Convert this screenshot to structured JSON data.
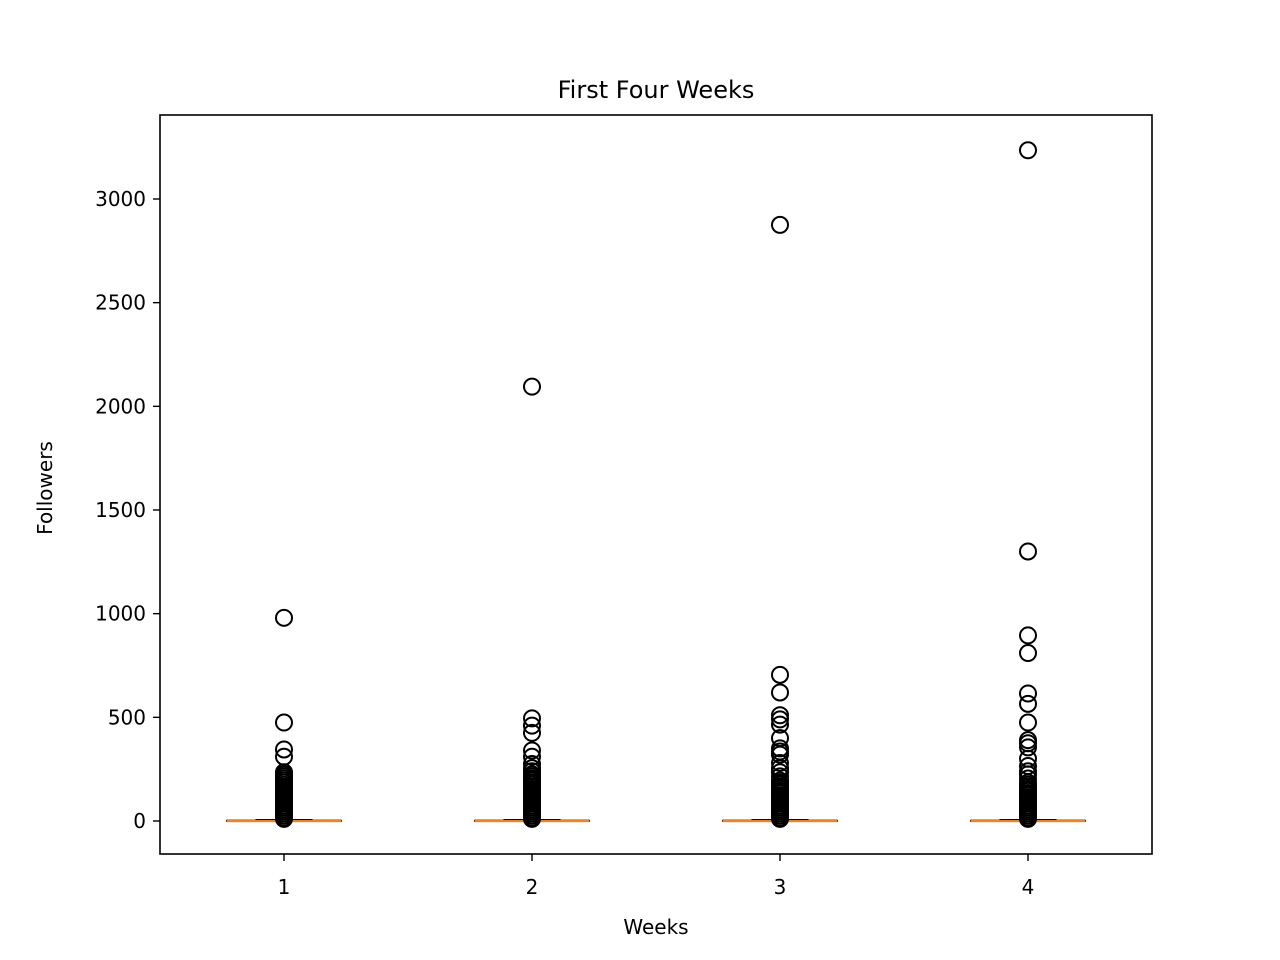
{
  "chart_data": {
    "type": "box",
    "title": "First Four Weeks",
    "xlabel": "Weeks",
    "ylabel": "Followers",
    "ylim": [
      -155,
      3400
    ],
    "yticks": [
      0,
      500,
      1000,
      1500,
      2000,
      2500,
      3000
    ],
    "grid": false,
    "colors": {
      "median": "#ff7f0e",
      "box": "#000000",
      "outlier": "#000000"
    },
    "categories": [
      "1",
      "2",
      "3",
      "4"
    ],
    "boxes": [
      {
        "category": "1",
        "min": 0,
        "q1": 0,
        "median": 0,
        "q3": 3,
        "max": 6,
        "outliers": [
          980,
          475,
          345,
          310,
          235,
          225,
          215,
          205,
          195,
          185,
          175,
          165,
          155,
          145,
          135,
          125,
          115,
          105,
          95,
          85,
          75,
          65,
          55,
          45,
          35,
          25,
          15,
          10
        ]
      },
      {
        "category": "2",
        "min": 0,
        "q1": 0,
        "median": 0,
        "q3": 3,
        "max": 6,
        "outliers": [
          2095,
          495,
          460,
          425,
          340,
          310,
          275,
          255,
          240,
          225,
          215,
          205,
          195,
          185,
          175,
          165,
          155,
          145,
          135,
          125,
          115,
          105,
          95,
          85,
          75,
          65,
          55,
          45,
          35,
          25,
          15,
          10
        ]
      },
      {
        "category": "3",
        "min": 0,
        "q1": 0,
        "median": 0,
        "q3": 3,
        "max": 6,
        "outliers": [
          2875,
          705,
          620,
          510,
          490,
          465,
          400,
          350,
          335,
          320,
          280,
          255,
          235,
          215,
          195,
          185,
          175,
          165,
          155,
          145,
          135,
          125,
          115,
          105,
          95,
          85,
          75,
          65,
          55,
          45,
          35,
          25,
          15,
          10
        ]
      },
      {
        "category": "4",
        "min": 0,
        "q1": 0,
        "median": 0,
        "q3": 3,
        "max": 6,
        "outliers": [
          3235,
          1300,
          895,
          810,
          615,
          565,
          475,
          390,
          375,
          355,
          300,
          265,
          240,
          225,
          205,
          185,
          175,
          165,
          155,
          145,
          135,
          125,
          115,
          105,
          95,
          85,
          75,
          65,
          55,
          45,
          35,
          25,
          15,
          10
        ]
      }
    ]
  }
}
